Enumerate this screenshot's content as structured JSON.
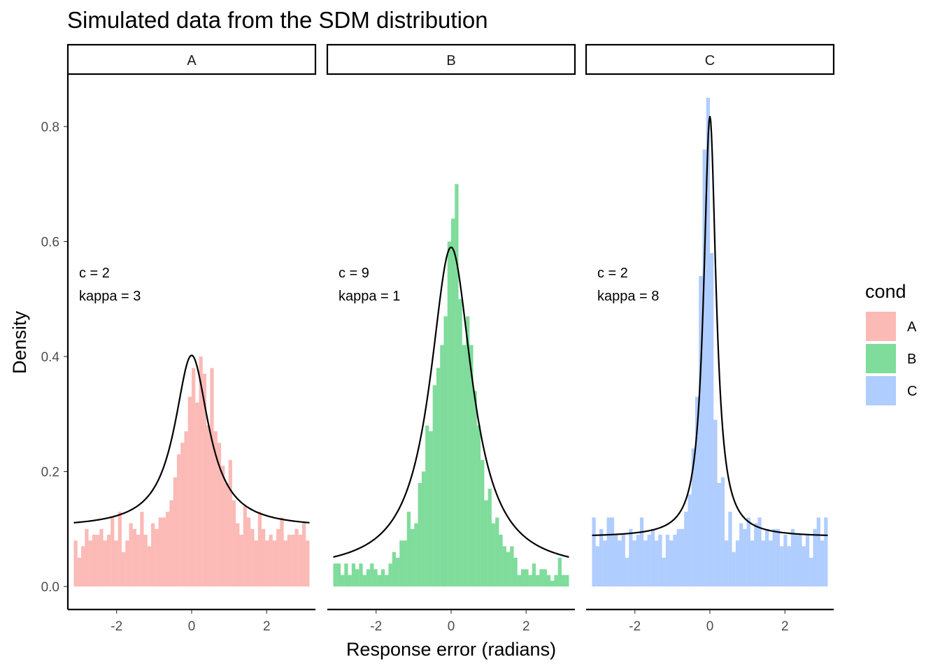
{
  "chart_data": {
    "type": "bar",
    "title": "Simulated data from the SDM distribution",
    "xlabel": "Response error (radians)",
    "ylabel": "Density",
    "xlim": [
      -3.3,
      3.3
    ],
    "ylim": [
      -0.04,
      0.89
    ],
    "x_ticks": [
      -2,
      0,
      2
    ],
    "x_tick_labels": [
      "-2",
      "0",
      "2"
    ],
    "y_ticks": [
      0.0,
      0.2,
      0.4,
      0.6,
      0.8
    ],
    "y_tick_labels": [
      "0.0",
      "0.2",
      "0.4",
      "0.6",
      "0.8"
    ],
    "bin_range": [
      -3.1416,
      3.1416
    ],
    "grid": false,
    "legend": {
      "title": "cond",
      "position": "right",
      "entries": [
        {
          "label": "A",
          "color": "#F8766D"
        },
        {
          "label": "B",
          "color": "#00BA38"
        },
        {
          "label": "C",
          "color": "#619CFF"
        }
      ]
    },
    "facets": [
      {
        "label": "A",
        "color": "#F8766D",
        "c": 2,
        "kappa": 3,
        "annotation": [
          "c = 2",
          "kappa = 3"
        ],
        "curve_baseline": 0.102,
        "curve_peak": 0.402,
        "curve_width": 0.55,
        "curve_shape": 2.0,
        "densities": [
          0.08,
          0.05,
          0.07,
          0.1,
          0.08,
          0.09,
          0.09,
          0.1,
          0.08,
          0.09,
          0.12,
          0.08,
          0.13,
          0.06,
          0.08,
          0.11,
          0.1,
          0.09,
          0.13,
          0.09,
          0.07,
          0.11,
          0.1,
          0.12,
          0.12,
          0.13,
          0.15,
          0.19,
          0.23,
          0.25,
          0.27,
          0.33,
          0.38,
          0.32,
          0.4,
          0.37,
          0.28,
          0.38,
          0.27,
          0.25,
          0.21,
          0.18,
          0.22,
          0.15,
          0.11,
          0.09,
          0.14,
          0.12,
          0.1,
          0.08,
          0.13,
          0.1,
          0.08,
          0.09,
          0.08,
          0.1,
          0.12,
          0.08,
          0.09,
          0.09,
          0.1,
          0.09,
          0.11,
          0.08
        ]
      },
      {
        "label": "B",
        "color": "#00BA38",
        "c": 9,
        "kappa": 1,
        "annotation": [
          "c = 9",
          "kappa = 1"
        ],
        "curve_baseline": 0.026,
        "curve_peak": 0.59,
        "curve_width": 0.68,
        "curve_shape": 2.0,
        "densities": [
          0.04,
          0.04,
          0.02,
          0.04,
          0.02,
          0.04,
          0.03,
          0.04,
          0.02,
          0.03,
          0.04,
          0.03,
          0.02,
          0.03,
          0.02,
          0.04,
          0.06,
          0.05,
          0.08,
          0.08,
          0.13,
          0.1,
          0.11,
          0.18,
          0.2,
          0.28,
          0.27,
          0.35,
          0.38,
          0.42,
          0.47,
          0.6,
          0.64,
          0.7,
          0.5,
          0.42,
          0.47,
          0.42,
          0.34,
          0.28,
          0.22,
          0.15,
          0.17,
          0.11,
          0.12,
          0.09,
          0.07,
          0.06,
          0.07,
          0.05,
          0.02,
          0.03,
          0.03,
          0.02,
          0.04,
          0.02,
          0.03,
          0.03,
          0.02,
          0.01,
          0.02,
          0.05,
          0.02,
          0.02
        ]
      },
      {
        "label": "C",
        "color": "#619CFF",
        "c": 2,
        "kappa": 8,
        "annotation": [
          "c = 2",
          "kappa = 8"
        ],
        "curve_baseline": 0.086,
        "curve_peak": 0.818,
        "curve_width": 0.2,
        "curve_shape": 2.0,
        "densities": [
          0.12,
          0.07,
          0.1,
          0.08,
          0.12,
          0.12,
          0.09,
          0.08,
          0.09,
          0.05,
          0.1,
          0.08,
          0.09,
          0.12,
          0.08,
          0.09,
          0.1,
          0.08,
          0.09,
          0.05,
          0.09,
          0.08,
          0.09,
          0.1,
          0.1,
          0.13,
          0.16,
          0.24,
          0.33,
          0.54,
          0.76,
          0.85,
          0.58,
          0.29,
          0.18,
          0.19,
          0.08,
          0.13,
          0.06,
          0.08,
          0.11,
          0.1,
          0.12,
          0.08,
          0.11,
          0.12,
          0.08,
          0.1,
          0.08,
          0.1,
          0.1,
          0.07,
          0.09,
          0.07,
          0.1,
          0.09,
          0.09,
          0.07,
          0.09,
          0.05,
          0.1,
          0.12,
          0.08,
          0.12
        ]
      }
    ]
  }
}
